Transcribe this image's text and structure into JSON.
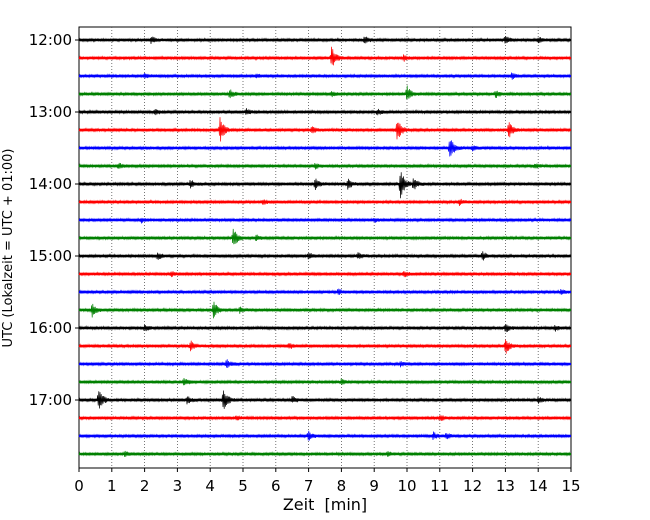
{
  "chart_data": {
    "type": "line",
    "plot_style": "helicorder",
    "xlabel": "Zeit  [min]",
    "ylabel": "UTC (Lokalzeit = UTC + 01:00)",
    "xlim": [
      0,
      15
    ],
    "x_ticks": [
      0,
      1,
      2,
      3,
      4,
      5,
      6,
      7,
      8,
      9,
      10,
      11,
      12,
      13,
      14,
      15
    ],
    "x_grid": true,
    "grid_style": "dotted vertical",
    "row_interval_minutes": 15,
    "line_colors": [
      "#000000",
      "#ff0000",
      "#0000ff",
      "#008000"
    ],
    "rows": [
      {
        "time": "12:00",
        "label": "12:00",
        "color": "#000000",
        "events": [
          {
            "t": 2.2,
            "a": 0.35
          },
          {
            "t": 8.7,
            "a": 0.4
          },
          {
            "t": 13.0,
            "a": 0.45
          },
          {
            "t": 14.0,
            "a": 0.3
          }
        ]
      },
      {
        "time": "12:15",
        "label": "",
        "color": "#ff0000",
        "events": [
          {
            "t": 7.7,
            "a": 1.2
          },
          {
            "t": 9.9,
            "a": 0.3
          }
        ]
      },
      {
        "time": "12:30",
        "label": "",
        "color": "#0000ff",
        "events": [
          {
            "t": 2.0,
            "a": 0.25
          },
          {
            "t": 5.4,
            "a": 0.25
          },
          {
            "t": 13.2,
            "a": 0.3
          }
        ]
      },
      {
        "time": "12:45",
        "label": "",
        "color": "#008000",
        "events": [
          {
            "t": 4.6,
            "a": 0.5
          },
          {
            "t": 7.7,
            "a": 0.3
          },
          {
            "t": 10.0,
            "a": 0.85
          },
          {
            "t": 12.7,
            "a": 0.4
          }
        ]
      },
      {
        "time": "13:00",
        "label": "13:00",
        "color": "#000000",
        "events": [
          {
            "t": 2.3,
            "a": 0.3
          },
          {
            "t": 5.1,
            "a": 0.35
          },
          {
            "t": 9.1,
            "a": 0.3
          }
        ]
      },
      {
        "time": "13:15",
        "label": "",
        "color": "#ff0000",
        "events": [
          {
            "t": 4.3,
            "a": 1.4
          },
          {
            "t": 7.1,
            "a": 0.4
          },
          {
            "t": 9.7,
            "a": 1.2
          },
          {
            "t": 13.1,
            "a": 0.9
          }
        ]
      },
      {
        "time": "13:30",
        "label": "",
        "color": "#0000ff",
        "events": [
          {
            "t": 11.3,
            "a": 1.3
          },
          {
            "t": 12.0,
            "a": 0.3
          }
        ]
      },
      {
        "time": "13:45",
        "label": "",
        "color": "#008000",
        "events": [
          {
            "t": 1.2,
            "a": 0.3
          },
          {
            "t": 7.2,
            "a": 0.3
          },
          {
            "t": 13.9,
            "a": 0.25
          }
        ]
      },
      {
        "time": "14:00",
        "label": "14:00",
        "color": "#000000",
        "events": [
          {
            "t": 3.4,
            "a": 0.45
          },
          {
            "t": 7.2,
            "a": 0.6
          },
          {
            "t": 8.2,
            "a": 0.5
          },
          {
            "t": 9.8,
            "a": 1.7
          },
          {
            "t": 10.2,
            "a": 0.6
          }
        ]
      },
      {
        "time": "14:15",
        "label": "",
        "color": "#ff0000",
        "events": [
          {
            "t": 5.6,
            "a": 0.3
          },
          {
            "t": 11.6,
            "a": 0.3
          }
        ]
      },
      {
        "time": "14:30",
        "label": "",
        "color": "#0000ff",
        "events": [
          {
            "t": 1.9,
            "a": 0.25
          },
          {
            "t": 9.0,
            "a": 0.25
          }
        ]
      },
      {
        "time": "14:45",
        "label": "",
        "color": "#008000",
        "events": [
          {
            "t": 4.7,
            "a": 1.1
          },
          {
            "t": 5.4,
            "a": 0.35
          }
        ]
      },
      {
        "time": "15:00",
        "label": "15:00",
        "color": "#000000",
        "events": [
          {
            "t": 2.4,
            "a": 0.4
          },
          {
            "t": 7.0,
            "a": 0.35
          },
          {
            "t": 8.5,
            "a": 0.3
          },
          {
            "t": 12.3,
            "a": 0.5
          }
        ]
      },
      {
        "time": "15:15",
        "label": "",
        "color": "#ff0000",
        "events": [
          {
            "t": 2.8,
            "a": 0.3
          },
          {
            "t": 9.9,
            "a": 0.3
          }
        ]
      },
      {
        "time": "15:30",
        "label": "",
        "color": "#0000ff",
        "events": [
          {
            "t": 7.9,
            "a": 0.3
          },
          {
            "t": 14.7,
            "a": 0.25
          }
        ]
      },
      {
        "time": "15:45",
        "label": "",
        "color": "#008000",
        "events": [
          {
            "t": 0.4,
            "a": 0.7
          },
          {
            "t": 4.1,
            "a": 0.9
          },
          {
            "t": 4.9,
            "a": 0.3
          }
        ]
      },
      {
        "time": "16:00",
        "label": "16:00",
        "color": "#000000",
        "events": [
          {
            "t": 2.0,
            "a": 0.3
          },
          {
            "t": 13.0,
            "a": 0.5
          },
          {
            "t": 14.5,
            "a": 0.3
          }
        ]
      },
      {
        "time": "16:15",
        "label": "",
        "color": "#ff0000",
        "events": [
          {
            "t": 3.4,
            "a": 0.55
          },
          {
            "t": 6.4,
            "a": 0.3
          },
          {
            "t": 13.0,
            "a": 0.85
          }
        ]
      },
      {
        "time": "16:30",
        "label": "",
        "color": "#0000ff",
        "events": [
          {
            "t": 4.5,
            "a": 0.45
          },
          {
            "t": 9.8,
            "a": 0.25
          }
        ]
      },
      {
        "time": "16:45",
        "label": "",
        "color": "#008000",
        "events": [
          {
            "t": 3.2,
            "a": 0.4
          },
          {
            "t": 8.0,
            "a": 0.3
          }
        ]
      },
      {
        "time": "17:00",
        "label": "17:00",
        "color": "#000000",
        "events": [
          {
            "t": 0.6,
            "a": 1.2
          },
          {
            "t": 3.3,
            "a": 0.4
          },
          {
            "t": 4.4,
            "a": 1.2
          },
          {
            "t": 6.5,
            "a": 0.35
          },
          {
            "t": 14.0,
            "a": 0.3
          }
        ]
      },
      {
        "time": "17:15",
        "label": "",
        "color": "#ff0000",
        "events": [
          {
            "t": 4.8,
            "a": 0.3
          },
          {
            "t": 11.0,
            "a": 0.3
          }
        ]
      },
      {
        "time": "17:30",
        "label": "",
        "color": "#0000ff",
        "events": [
          {
            "t": 7.0,
            "a": 0.45
          },
          {
            "t": 10.8,
            "a": 0.4
          },
          {
            "t": 11.2,
            "a": 0.3
          }
        ]
      },
      {
        "time": "17:45",
        "label": "",
        "color": "#008000",
        "events": [
          {
            "t": 1.4,
            "a": 0.3
          },
          {
            "t": 9.4,
            "a": 0.25
          }
        ]
      }
    ]
  }
}
